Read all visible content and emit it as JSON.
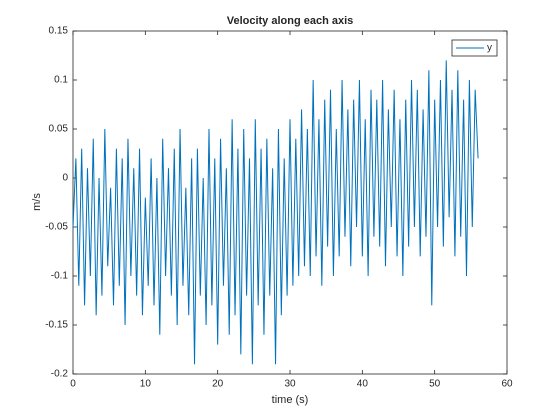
{
  "chart_data": {
    "type": "line",
    "title": "Velocity along each axis",
    "xlabel": "time (s)",
    "ylabel": "m/s",
    "x": [
      0,
      0.4,
      0.8,
      1.2,
      1.6,
      2,
      2.4,
      2.8,
      3.2,
      3.6,
      4,
      4.4,
      4.8,
      5.2,
      5.6,
      6,
      6.4,
      6.8,
      7.2,
      7.6,
      8,
      8.4,
      8.8,
      9.2,
      9.6,
      10,
      10.4,
      10.8,
      11.2,
      11.6,
      12,
      12.4,
      12.8,
      13.2,
      13.6,
      14,
      14.4,
      14.8,
      15.2,
      15.6,
      16,
      16.4,
      16.8,
      17.2,
      17.6,
      18,
      18.4,
      18.8,
      19.2,
      19.6,
      20,
      20.4,
      20.8,
      21.2,
      21.6,
      22,
      22.4,
      22.8,
      23.2,
      23.6,
      24,
      24.4,
      24.8,
      25.2,
      25.6,
      26,
      26.4,
      26.8,
      27.2,
      27.6,
      28,
      28.4,
      28.8,
      29.2,
      29.6,
      30,
      30.4,
      30.8,
      31.2,
      31.6,
      32,
      32.4,
      32.8,
      33.2,
      33.6,
      34,
      34.4,
      34.8,
      35.2,
      35.6,
      36,
      36.4,
      36.8,
      37.2,
      37.6,
      38,
      38.4,
      38.8,
      39.2,
      39.6,
      40,
      40.4,
      40.8,
      41.2,
      41.6,
      42,
      42.4,
      42.8,
      43.2,
      43.6,
      44,
      44.4,
      44.8,
      45.2,
      45.6,
      46,
      46.4,
      46.8,
      47.2,
      47.6,
      48,
      48.4,
      48.8,
      49.2,
      49.6,
      50,
      50.4,
      50.8,
      51.2,
      51.6,
      52,
      52.4,
      52.8,
      53.2,
      53.6,
      54,
      54.4,
      54.8,
      55.2,
      55.6,
      56
    ],
    "series": [
      {
        "name": "y",
        "color": "#0072bd",
        "values": [
          -0.05,
          0.02,
          -0.11,
          0.03,
          -0.13,
          0.01,
          -0.1,
          0.04,
          -0.14,
          0.0,
          -0.12,
          0.05,
          -0.09,
          -0.01,
          -0.13,
          0.03,
          -0.11,
          0.02,
          -0.15,
          0.04,
          -0.1,
          0.01,
          -0.12,
          0.03,
          -0.14,
          -0.02,
          -0.11,
          0.02,
          -0.13,
          0.0,
          -0.16,
          0.04,
          -0.1,
          0.01,
          -0.12,
          0.03,
          -0.15,
          0.05,
          -0.11,
          -0.01,
          -0.14,
          0.02,
          -0.19,
          0.03,
          -0.12,
          0.0,
          -0.15,
          0.05,
          -0.13,
          0.02,
          -0.17,
          0.04,
          -0.11,
          0.01,
          -0.16,
          0.06,
          -0.14,
          0.03,
          -0.18,
          0.05,
          -0.12,
          0.02,
          -0.19,
          0.06,
          -0.13,
          0.03,
          -0.16,
          0.04,
          -0.12,
          0.01,
          -0.19,
          0.05,
          -0.14,
          0.02,
          -0.12,
          0.06,
          -0.11,
          0.04,
          -0.1,
          0.07,
          -0.09,
          0.05,
          -0.1,
          0.1,
          -0.08,
          0.06,
          -0.11,
          0.08,
          -0.07,
          0.09,
          -0.1,
          0.05,
          -0.08,
          0.1,
          -0.06,
          0.07,
          -0.09,
          0.08,
          -0.05,
          0.1,
          -0.08,
          0.06,
          -0.1,
          0.09,
          -0.06,
          0.08,
          -0.07,
          0.1,
          -0.09,
          0.07,
          -0.05,
          0.09,
          -0.08,
          0.06,
          -0.1,
          0.08,
          -0.07,
          0.1,
          -0.05,
          0.09,
          -0.08,
          0.07,
          -0.06,
          0.11,
          -0.13,
          0.08,
          -0.05,
          0.1,
          -0.07,
          0.12,
          -0.04,
          0.09,
          -0.08,
          0.11,
          -0.06,
          0.08,
          -0.1,
          0.1,
          -0.05,
          0.09,
          0.02
        ]
      }
    ],
    "xlim": [
      0,
      60
    ],
    "xticks": [
      0,
      10,
      20,
      30,
      40,
      50,
      60
    ],
    "ylim": [
      -0.2,
      0.15
    ],
    "yticks": [
      -0.2,
      -0.15,
      -0.1,
      -0.05,
      0,
      0.05,
      0.1,
      0.15
    ],
    "legend": "northeast"
  }
}
